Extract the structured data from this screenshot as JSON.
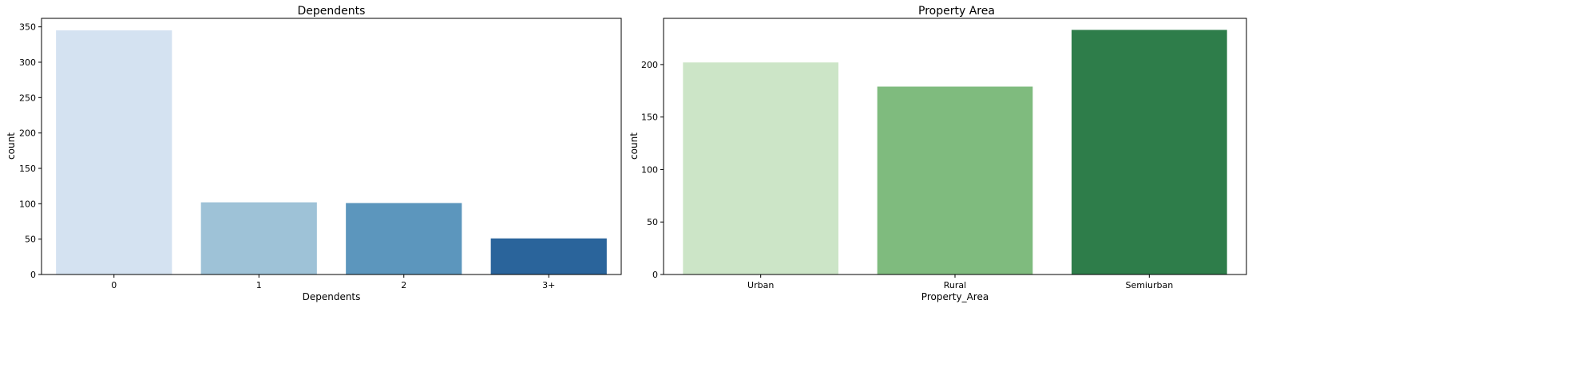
{
  "chart_data": [
    {
      "type": "bar",
      "title": "Dependents",
      "xlabel": "Dependents",
      "ylabel": "count",
      "categories": [
        "0",
        "1",
        "2",
        "3+"
      ],
      "values": [
        345,
        102,
        101,
        51
      ],
      "colors": [
        "#d4e2f1",
        "#9ec2d7",
        "#5c96bd",
        "#2a649b"
      ],
      "ylim": [
        0,
        362
      ],
      "yticks": [
        0,
        50,
        100,
        150,
        200,
        250,
        300,
        350
      ],
      "grid": false
    },
    {
      "type": "bar",
      "title": "Property Area",
      "xlabel": "Property_Area",
      "ylabel": "count",
      "categories": [
        "Urban",
        "Rural",
        "Semiurban"
      ],
      "values": [
        202,
        179,
        233
      ],
      "colors": [
        "#cce5c7",
        "#7fbb7e",
        "#2e7d4a"
      ],
      "ylim": [
        0,
        244
      ],
      "yticks": [
        0,
        50,
        100,
        150,
        200
      ],
      "grid": false
    }
  ]
}
